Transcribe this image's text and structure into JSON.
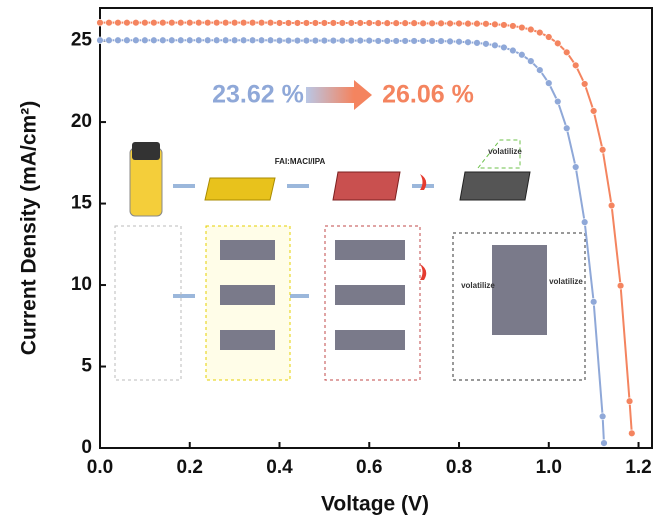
{
  "chart_data": {
    "type": "line",
    "xlabel": "Voltage (V)",
    "ylabel": "Current Density (mA/cm²)",
    "xlim": [
      0,
      1.23
    ],
    "ylim": [
      0,
      27
    ],
    "xticks": [
      {
        "value": 0,
        "label": "0.0"
      },
      0.2,
      0.4,
      0.6,
      0.8,
      {
        "value": 1,
        "label": "1.0"
      },
      1.2
    ],
    "yticks": [
      0,
      5,
      10,
      15,
      20,
      25
    ],
    "grid": false,
    "annotations": [
      {
        "text": "23.62 %",
        "color": "#8fa8d8"
      },
      {
        "text": "26.06 %",
        "color": "#f4845f"
      },
      {
        "text": "FAI:MACl/IPA",
        "color": "#222222"
      },
      {
        "text": "volatilize",
        "color": "#333333"
      },
      {
        "text": "volatilize",
        "color": "#333333"
      },
      {
        "text": "volatilize",
        "color": "#333333"
      }
    ],
    "series": [
      {
        "color": "#8fa8d8",
        "x": [
          0,
          0.02,
          0.04,
          0.06,
          0.08,
          0.1,
          0.12,
          0.14,
          0.16,
          0.18,
          0.2,
          0.22,
          0.24,
          0.26,
          0.28,
          0.3,
          0.32,
          0.34,
          0.36,
          0.38,
          0.4,
          0.42,
          0.44,
          0.46,
          0.48,
          0.5,
          0.52,
          0.54,
          0.56,
          0.58,
          0.6,
          0.62,
          0.64,
          0.66,
          0.68,
          0.7,
          0.72,
          0.74,
          0.76,
          0.78,
          0.8,
          0.82,
          0.84,
          0.86,
          0.88,
          0.9,
          0.92,
          0.94,
          0.96,
          0.98,
          1.0,
          1.02,
          1.04,
          1.06,
          1.08,
          1.1,
          1.12,
          1.123
        ],
        "values": [
          25.02,
          25.02,
          25.02,
          25.02,
          25.02,
          25.02,
          25.02,
          25.02,
          25.02,
          25.02,
          25.02,
          25.02,
          25.02,
          25.02,
          25.02,
          25.02,
          25.02,
          25.02,
          25.02,
          25.02,
          25.0,
          25.0,
          25.0,
          25.0,
          25.0,
          25.0,
          25.0,
          25.0,
          25.0,
          25.0,
          25.0,
          24.98,
          24.98,
          24.98,
          24.98,
          24.98,
          24.98,
          24.98,
          24.97,
          24.95,
          24.93,
          24.9,
          24.86,
          24.8,
          24.71,
          24.58,
          24.39,
          24.13,
          23.74,
          23.19,
          22.39,
          21.26,
          19.62,
          17.24,
          13.86,
          8.97,
          1.94,
          0.3
        ]
      },
      {
        "color": "#f4845f",
        "x": [
          0,
          0.02,
          0.04,
          0.06,
          0.08,
          0.1,
          0.12,
          0.14,
          0.16,
          0.18,
          0.2,
          0.22,
          0.24,
          0.26,
          0.28,
          0.3,
          0.32,
          0.34,
          0.36,
          0.38,
          0.4,
          0.42,
          0.44,
          0.46,
          0.48,
          0.5,
          0.52,
          0.54,
          0.56,
          0.58,
          0.6,
          0.62,
          0.64,
          0.66,
          0.68,
          0.7,
          0.72,
          0.74,
          0.76,
          0.78,
          0.8,
          0.82,
          0.84,
          0.86,
          0.88,
          0.9,
          0.92,
          0.94,
          0.96,
          0.98,
          1.0,
          1.02,
          1.04,
          1.06,
          1.08,
          1.1,
          1.12,
          1.14,
          1.16,
          1.18,
          1.185
        ],
        "values": [
          26.1,
          26.1,
          26.1,
          26.1,
          26.1,
          26.1,
          26.1,
          26.1,
          26.1,
          26.1,
          26.1,
          26.1,
          26.1,
          26.1,
          26.1,
          26.1,
          26.1,
          26.1,
          26.1,
          26.1,
          26.08,
          26.08,
          26.08,
          26.08,
          26.08,
          26.08,
          26.08,
          26.08,
          26.08,
          26.08,
          26.08,
          26.07,
          26.07,
          26.07,
          26.07,
          26.07,
          26.06,
          26.06,
          26.06,
          26.05,
          26.05,
          26.04,
          26.04,
          26.03,
          26.0,
          25.96,
          25.9,
          25.8,
          25.68,
          25.49,
          25.22,
          24.83,
          24.28,
          23.48,
          22.34,
          20.68,
          18.3,
          14.88,
          9.96,
          2.87,
          0.9
        ]
      }
    ]
  }
}
